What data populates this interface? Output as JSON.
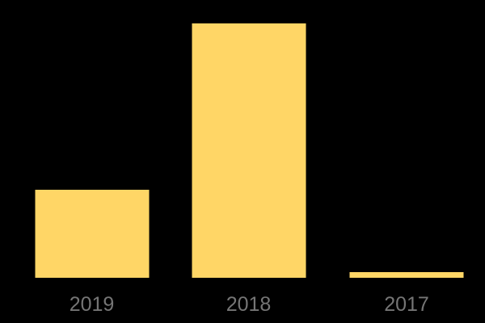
{
  "chart_data": {
    "type": "bar",
    "title": "",
    "xlabel": "",
    "ylabel": "",
    "categories": [
      "2019",
      "2018",
      "2017"
    ],
    "values": [
      34.6,
      100,
      2.1
    ],
    "value_note": "No y-axis, gridlines, or data labels are visible; values are estimated relative heights with the tallest bar (2018) = 100.",
    "ylim": [
      0,
      100
    ],
    "grid": "off",
    "legend": "none",
    "bar_color": "#FFD666",
    "label_color": "#757575",
    "background_color": "#000000"
  }
}
